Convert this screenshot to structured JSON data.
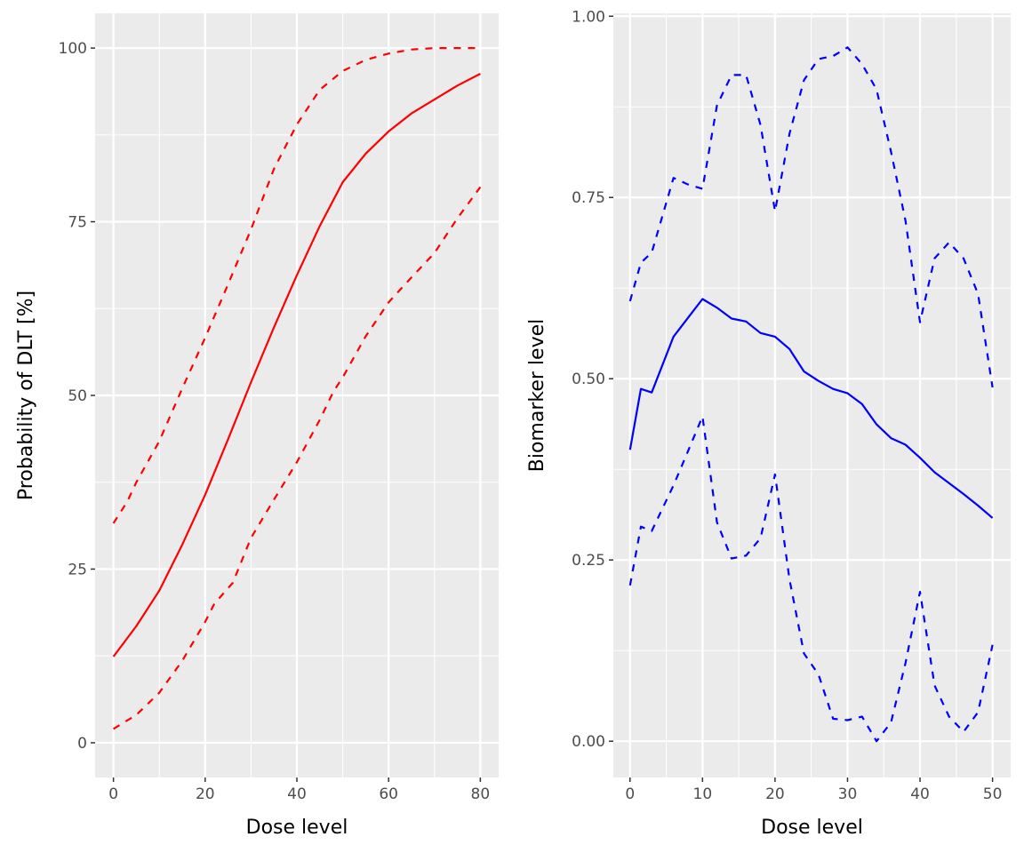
{
  "chart_data": [
    {
      "type": "line",
      "xlabel": "Dose level",
      "ylabel": "Probability of DLT [%]",
      "xlim": [
        -4,
        84
      ],
      "ylim": [
        -5,
        105
      ],
      "xticks": [
        0,
        20,
        40,
        60,
        80
      ],
      "yticks": [
        0,
        25,
        50,
        75,
        100
      ],
      "grid": true,
      "color": "#ff0000",
      "series": [
        {
          "style": "solid",
          "x": [
            0,
            5,
            10,
            15,
            20,
            25,
            30,
            35,
            40,
            45,
            50,
            55,
            60,
            65,
            70,
            75,
            80
          ],
          "y": [
            12.4,
            16.8,
            21.9,
            28.5,
            35.7,
            43.7,
            51.9,
            59.8,
            67.3,
            74.4,
            80.7,
            84.8,
            88.0,
            90.6,
            92.6,
            94.6,
            96.3
          ]
        },
        {
          "style": "dashed",
          "x": [
            0,
            3,
            5,
            10,
            15,
            20,
            25,
            30,
            35,
            40,
            45,
            50,
            55,
            60,
            65,
            70,
            75,
            80
          ],
          "y": [
            31.6,
            34.7,
            37.5,
            43.4,
            51.0,
            58.3,
            66.0,
            73.9,
            82.6,
            89.0,
            94.0,
            96.7,
            98.3,
            99.2,
            99.8,
            100,
            100,
            100
          ]
        },
        {
          "style": "dashed",
          "x": [
            0,
            5,
            10,
            15,
            20,
            22,
            26,
            30,
            35,
            40,
            45,
            48,
            50,
            55,
            60,
            65,
            70,
            75,
            80
          ],
          "y": [
            2.0,
            4.0,
            7.2,
            11.8,
            17.4,
            20.0,
            23.0,
            29.5,
            35.0,
            40.4,
            46.5,
            50.6,
            52.6,
            58.5,
            63.4,
            67.0,
            70.5,
            75.5,
            80.0
          ]
        }
      ]
    },
    {
      "type": "line",
      "xlabel": "Dose level",
      "ylabel": "Biomarker level",
      "xlim": [
        -2.3,
        52.5
      ],
      "ylim": [
        -0.05,
        1.004
      ],
      "xticks": [
        0,
        10,
        20,
        30,
        40,
        50
      ],
      "yticks": [
        "0.00",
        "0.25",
        "0.50",
        "0.75",
        "1.00"
      ],
      "grid": true,
      "color": "#0000ff",
      "x": [
        0,
        1.5,
        3,
        6,
        8,
        10,
        12,
        14,
        16,
        18,
        20,
        22,
        24,
        26,
        28,
        30,
        32,
        34,
        36,
        38,
        40,
        42,
        44,
        46,
        48,
        50
      ],
      "series": [
        {
          "style": "solid",
          "y": [
            0.402,
            0.486,
            0.481,
            0.558,
            0.584,
            0.61,
            0.598,
            0.583,
            0.579,
            0.563,
            0.558,
            0.541,
            0.51,
            0.497,
            0.486,
            0.48,
            0.465,
            0.437,
            0.418,
            0.409,
            0.391,
            0.371,
            0.356,
            0.341,
            0.325,
            0.308
          ]
        },
        {
          "style": "dashed",
          "y": [
            0.607,
            0.66,
            0.674,
            0.777,
            0.768,
            0.762,
            0.877,
            0.919,
            0.919,
            0.85,
            0.731,
            0.838,
            0.912,
            0.941,
            0.945,
            0.957,
            0.934,
            0.899,
            0.813,
            0.718,
            0.578,
            0.666,
            0.688,
            0.666,
            0.617,
            0.488
          ]
        },
        {
          "style": "dashed",
          "y": [
            0.215,
            0.296,
            0.29,
            0.353,
            0.4,
            0.448,
            0.302,
            0.252,
            0.256,
            0.28,
            0.368,
            0.223,
            0.121,
            0.092,
            0.031,
            0.029,
            0.034,
            0.0,
            0.026,
            0.108,
            0.206,
            0.077,
            0.034,
            0.013,
            0.04,
            0.133
          ]
        }
      ]
    }
  ]
}
